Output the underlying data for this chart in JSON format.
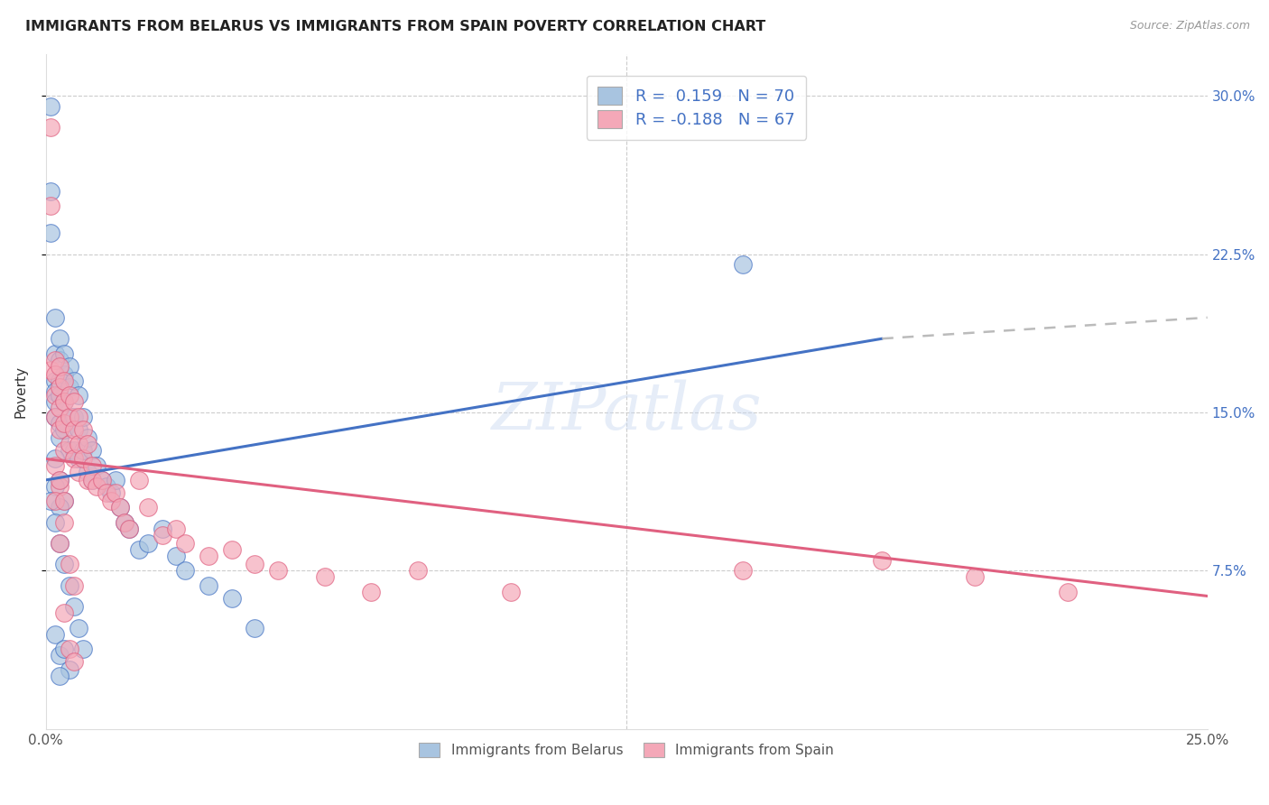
{
  "title": "IMMIGRANTS FROM BELARUS VS IMMIGRANTS FROM SPAIN POVERTY CORRELATION CHART",
  "source": "Source: ZipAtlas.com",
  "ylabel": "Poverty",
  "xlim": [
    0.0,
    0.25
  ],
  "ylim": [
    0.0,
    0.32
  ],
  "yticks": [
    0.075,
    0.15,
    0.225,
    0.3
  ],
  "ytick_labels": [
    "7.5%",
    "15.0%",
    "22.5%",
    "30.0%"
  ],
  "watermark": "ZIPatlas",
  "blue_color": "#a8c4e0",
  "pink_color": "#f4a8b8",
  "line_blue": "#4472c4",
  "line_pink": "#e06080",
  "line_gray": "#bbbbbb",
  "blue_line_x0": 0.0,
  "blue_line_y0": 0.118,
  "blue_line_x1": 0.18,
  "blue_line_y1": 0.185,
  "gray_line_x0": 0.18,
  "gray_line_y0": 0.185,
  "gray_line_x1": 0.25,
  "gray_line_y1": 0.195,
  "pink_line_x0": 0.0,
  "pink_line_y0": 0.128,
  "pink_line_x1": 0.25,
  "pink_line_y1": 0.063,
  "belarus_x": [
    0.001,
    0.001,
    0.001,
    0.002,
    0.002,
    0.002,
    0.002,
    0.002,
    0.002,
    0.003,
    0.003,
    0.003,
    0.003,
    0.003,
    0.003,
    0.004,
    0.004,
    0.004,
    0.004,
    0.005,
    0.005,
    0.005,
    0.005,
    0.006,
    0.006,
    0.006,
    0.007,
    0.007,
    0.007,
    0.008,
    0.008,
    0.009,
    0.009,
    0.01,
    0.01,
    0.011,
    0.012,
    0.013,
    0.014,
    0.015,
    0.016,
    0.017,
    0.018,
    0.02,
    0.022,
    0.025,
    0.028,
    0.03,
    0.035,
    0.04,
    0.045,
    0.002,
    0.003,
    0.004,
    0.002,
    0.003,
    0.001,
    0.002,
    0.003,
    0.004,
    0.005,
    0.006,
    0.007,
    0.008,
    0.003,
    0.002,
    0.004,
    0.005,
    0.15,
    0.003
  ],
  "belarus_y": [
    0.295,
    0.255,
    0.235,
    0.195,
    0.178,
    0.165,
    0.16,
    0.155,
    0.148,
    0.185,
    0.175,
    0.165,
    0.158,
    0.145,
    0.138,
    0.178,
    0.168,
    0.155,
    0.142,
    0.172,
    0.162,
    0.148,
    0.132,
    0.165,
    0.148,
    0.132,
    0.158,
    0.142,
    0.128,
    0.148,
    0.132,
    0.138,
    0.122,
    0.132,
    0.118,
    0.125,
    0.118,
    0.115,
    0.112,
    0.118,
    0.105,
    0.098,
    0.095,
    0.085,
    0.088,
    0.095,
    0.082,
    0.075,
    0.068,
    0.062,
    0.048,
    0.128,
    0.118,
    0.108,
    0.115,
    0.105,
    0.108,
    0.098,
    0.088,
    0.078,
    0.068,
    0.058,
    0.048,
    0.038,
    0.035,
    0.045,
    0.038,
    0.028,
    0.22,
    0.025
  ],
  "spain_x": [
    0.001,
    0.001,
    0.001,
    0.002,
    0.002,
    0.002,
    0.002,
    0.003,
    0.003,
    0.003,
    0.003,
    0.004,
    0.004,
    0.004,
    0.004,
    0.005,
    0.005,
    0.005,
    0.006,
    0.006,
    0.006,
    0.007,
    0.007,
    0.007,
    0.008,
    0.008,
    0.009,
    0.009,
    0.01,
    0.01,
    0.011,
    0.012,
    0.013,
    0.014,
    0.015,
    0.016,
    0.017,
    0.018,
    0.02,
    0.022,
    0.025,
    0.028,
    0.03,
    0.035,
    0.04,
    0.045,
    0.05,
    0.06,
    0.07,
    0.08,
    0.1,
    0.003,
    0.002,
    0.004,
    0.003,
    0.005,
    0.006,
    0.002,
    0.003,
    0.004,
    0.15,
    0.18,
    0.2,
    0.22,
    0.005,
    0.006,
    0.004
  ],
  "spain_y": [
    0.285,
    0.248,
    0.17,
    0.175,
    0.168,
    0.158,
    0.148,
    0.172,
    0.162,
    0.152,
    0.142,
    0.165,
    0.155,
    0.145,
    0.132,
    0.158,
    0.148,
    0.135,
    0.155,
    0.142,
    0.128,
    0.148,
    0.135,
    0.122,
    0.142,
    0.128,
    0.135,
    0.118,
    0.125,
    0.118,
    0.115,
    0.118,
    0.112,
    0.108,
    0.112,
    0.105,
    0.098,
    0.095,
    0.118,
    0.105,
    0.092,
    0.095,
    0.088,
    0.082,
    0.085,
    0.078,
    0.075,
    0.072,
    0.065,
    0.075,
    0.065,
    0.115,
    0.108,
    0.098,
    0.088,
    0.078,
    0.068,
    0.125,
    0.118,
    0.108,
    0.075,
    0.08,
    0.072,
    0.065,
    0.038,
    0.032,
    0.055
  ]
}
